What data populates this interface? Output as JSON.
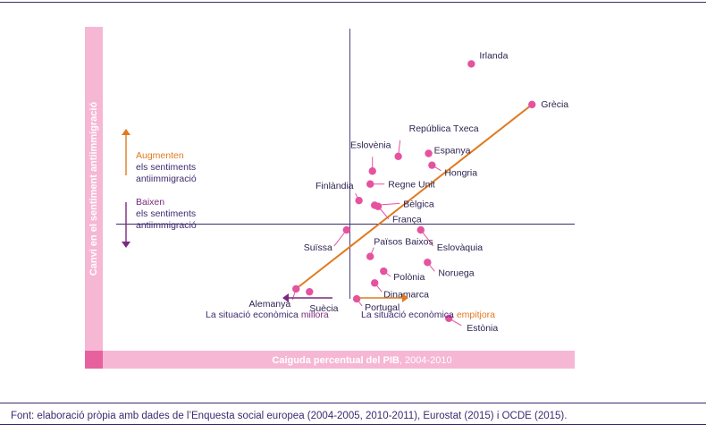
{
  "chart_data": {
    "type": "scatter",
    "xlabel_bold": "Caiguda percentual del PIB",
    "xlabel_rest": ", 2004-2010",
    "ylabel": "Canvi en el sentiment antiimmigració",
    "grid": false,
    "points": [
      {
        "label": "Irlanda",
        "x": 10.8,
        "y": 0.272
      },
      {
        "label": "Grècia",
        "x": 16.2,
        "y": 0.203
      },
      {
        "label": "República Txeca",
        "x": 4.3,
        "y": 0.115
      },
      {
        "label": "Eslovènia",
        "x": 2.0,
        "y": 0.09
      },
      {
        "label": "Espanya",
        "x": 7.0,
        "y": 0.12
      },
      {
        "label": "Hongria",
        "x": 7.3,
        "y": 0.1
      },
      {
        "label": "Finlàndia",
        "x": 0.8,
        "y": 0.04
      },
      {
        "label": "Regne Unit",
        "x": 1.8,
        "y": 0.068
      },
      {
        "label": "Bèlgica",
        "x": 2.2,
        "y": 0.032
      },
      {
        "label": "França",
        "x": 2.5,
        "y": 0.03
      },
      {
        "label": "Suïssa",
        "x": -0.3,
        "y": -0.01
      },
      {
        "label": "Eslovàquia",
        "x": 6.3,
        "y": -0.01
      },
      {
        "label": "Països Baixos",
        "x": 1.8,
        "y": -0.055
      },
      {
        "label": "Noruega",
        "x": 6.9,
        "y": -0.065
      },
      {
        "label": "Polònia",
        "x": 3.0,
        "y": -0.08
      },
      {
        "label": "Dinamarca",
        "x": 2.2,
        "y": -0.1
      },
      {
        "label": "Portugal",
        "x": 0.6,
        "y": -0.127
      },
      {
        "label": "Alemanya",
        "x": -4.8,
        "y": -0.11
      },
      {
        "label": "Suècia",
        "x": -3.6,
        "y": -0.115
      },
      {
        "label": "Estònia",
        "x": 8.8,
        "y": -0.16
      }
    ],
    "trendline": {
      "from": {
        "x": -4.8,
        "y": -0.11
      },
      "to": {
        "x": 16.2,
        "y": 0.203
      }
    },
    "xlim": [
      -22,
      20
    ],
    "ylim": [
      -0.215,
      0.335
    ],
    "annotations": {
      "up_title": "Augmenten",
      "up_line1": "els sentiments",
      "up_line2": "antiimmigració",
      "down_title": "Baixen",
      "down_line1": "els sentiments",
      "down_line2": "antiimmigració",
      "left_text": "La situació econòmica ",
      "left_highlight": "millora",
      "right_text": "La situació econòmica ",
      "right_highlight": "empitjora"
    },
    "colors": {
      "point": "#e5539f",
      "trend": "#e07a1f",
      "axis": "#3d2a6e",
      "label_band": "#f6b7d5",
      "label_band_dark": "#e8619f",
      "arrow_up": "#e07a1f",
      "arrow_down": "#7a2a7e",
      "highlight_purple": "#7a2a7e",
      "highlight_orange": "#e07a1f"
    }
  },
  "source": "Font: elaboració pròpia amb dades de l’Enquesta social europea (2004-2005, 2010-2011), Eurostat (2015) i OCDE (2015)."
}
